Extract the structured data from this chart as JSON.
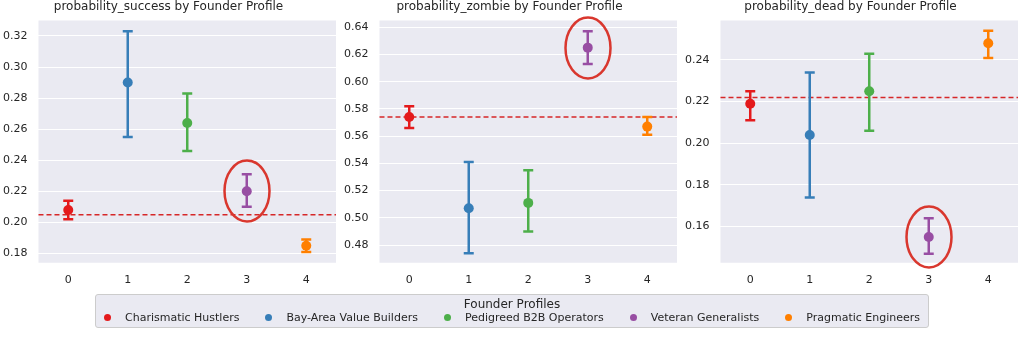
{
  "chart_data": [
    {
      "type": "scatter",
      "title": "probability_success by Founder Profile",
      "categories": [
        "0",
        "1",
        "2",
        "3",
        "4"
      ],
      "ylim": [
        0.174,
        0.33
      ],
      "yticks": [
        {
          "value": 0.18,
          "label": "0.18"
        },
        {
          "value": 0.2,
          "label": "0.20"
        },
        {
          "value": 0.22,
          "label": "0.22"
        },
        {
          "value": 0.24,
          "label": "0.24"
        },
        {
          "value": 0.26,
          "label": "0.26"
        },
        {
          "value": 0.28,
          "label": "0.28"
        },
        {
          "value": 0.3,
          "label": "0.30"
        },
        {
          "value": 0.32,
          "label": "0.32"
        }
      ],
      "grid": "y",
      "marker": "circle",
      "legend": "bottom",
      "legend_title": "Founder Profiles",
      "ref_lines": [
        {
          "axis": "y",
          "value": 0.205,
          "color": "#d62728",
          "line_style": "dashed"
        }
      ],
      "series": [
        {
          "name": "Charismatic Hustlers",
          "color": "#e41a1c",
          "values": [
            0.208,
            null,
            null,
            null,
            null
          ],
          "errors": [
            [
              0.202,
              0.214
            ],
            null,
            null,
            null,
            null
          ]
        },
        {
          "name": "Bay-Area Value Builders",
          "color": "#377eb8",
          "values": [
            null,
            0.29,
            null,
            null,
            null
          ],
          "errors": [
            null,
            [
              0.255,
              0.323
            ],
            null,
            null,
            null
          ]
        },
        {
          "name": "Pedigreed B2B Operators",
          "color": "#4daf4a",
          "values": [
            null,
            null,
            0.264,
            null,
            null
          ],
          "errors": [
            null,
            null,
            [
              0.246,
              0.283
            ],
            null,
            null
          ]
        },
        {
          "name": "Veteran Generalists",
          "color": "#984ea3",
          "values": [
            null,
            null,
            null,
            0.22,
            null
          ],
          "errors": [
            null,
            null,
            null,
            [
              0.21,
              0.231
            ],
            null
          ]
        },
        {
          "name": "Pragmatic Engineers",
          "color": "#ff7f00",
          "values": [
            null,
            null,
            null,
            null,
            0.185
          ],
          "errors": [
            null,
            null,
            null,
            null,
            [
              0.181,
              0.189
            ]
          ]
        }
      ]
    },
    {
      "type": "scatter",
      "title": "probability_zombie by Founder Profile",
      "categories": [
        "0",
        "1",
        "2",
        "3",
        "4"
      ],
      "ylim": [
        0.467,
        0.645
      ],
      "yticks": [
        {
          "value": 0.48,
          "label": "0.48"
        },
        {
          "value": 0.5,
          "label": "0.50"
        },
        {
          "value": 0.52,
          "label": "0.52"
        },
        {
          "value": 0.54,
          "label": "0.54"
        },
        {
          "value": 0.56,
          "label": "0.56"
        },
        {
          "value": 0.58,
          "label": "0.58"
        },
        {
          "value": 0.6,
          "label": "0.60"
        },
        {
          "value": 0.62,
          "label": "0.62"
        },
        {
          "value": 0.64,
          "label": "0.64"
        }
      ],
      "grid": "y",
      "marker": "circle",
      "ref_lines": [
        {
          "axis": "y",
          "value": 0.574,
          "color": "#d62728",
          "line_style": "dashed"
        }
      ],
      "series": [
        {
          "color": "#e41a1c",
          "values": [
            0.574,
            null,
            null,
            null,
            null
          ],
          "errors": [
            [
              0.566,
              0.582
            ],
            null,
            null,
            null,
            null
          ]
        },
        {
          "color": "#377eb8",
          "values": [
            null,
            0.507,
            null,
            null,
            null
          ],
          "errors": [
            null,
            [
              0.474,
              0.541
            ],
            null,
            null,
            null
          ]
        },
        {
          "color": "#4daf4a",
          "values": [
            null,
            null,
            0.511,
            null,
            null
          ],
          "errors": [
            null,
            null,
            [
              0.49,
              0.535
            ],
            null,
            null
          ]
        },
        {
          "color": "#984ea3",
          "values": [
            null,
            null,
            null,
            0.625,
            null
          ],
          "errors": [
            null,
            null,
            null,
            [
              0.613,
              0.637
            ],
            null
          ]
        },
        {
          "color": "#ff7f00",
          "values": [
            null,
            null,
            null,
            null,
            0.567
          ],
          "errors": [
            null,
            null,
            null,
            null,
            [
              0.561,
              0.574
            ]
          ]
        }
      ]
    },
    {
      "type": "scatter",
      "title": "probability_dead by Founder Profile",
      "categories": [
        "0",
        "1",
        "2",
        "3",
        "4"
      ],
      "ylim": [
        0.1426,
        0.259
      ],
      "yticks": [
        {
          "value": 0.16,
          "label": "0.16"
        },
        {
          "value": 0.18,
          "label": "0.18"
        },
        {
          "value": 0.2,
          "label": "0.20"
        },
        {
          "value": 0.22,
          "label": "0.22"
        },
        {
          "value": 0.24,
          "label": "0.24"
        }
      ],
      "grid": "y",
      "marker": "circle",
      "ref_lines": [
        {
          "axis": "y",
          "value": 0.222,
          "color": "#d62728",
          "line_style": "dashed"
        }
      ],
      "series": [
        {
          "color": "#e41a1c",
          "values": [
            0.219,
            null,
            null,
            null,
            null
          ],
          "errors": [
            [
              0.211,
              0.225
            ],
            null,
            null,
            null,
            null
          ]
        },
        {
          "color": "#377eb8",
          "values": [
            null,
            0.204,
            null,
            null,
            null
          ],
          "errors": [
            null,
            [
              0.174,
              0.234
            ],
            null,
            null,
            null
          ]
        },
        {
          "color": "#4daf4a",
          "values": [
            null,
            null,
            0.225,
            null,
            null
          ],
          "errors": [
            null,
            null,
            [
              0.206,
              0.243
            ],
            null,
            null
          ]
        },
        {
          "color": "#984ea3",
          "values": [
            null,
            null,
            null,
            0.155,
            null
          ],
          "errors": [
            null,
            null,
            null,
            [
              0.147,
              0.164
            ],
            null
          ]
        },
        {
          "color": "#ff7f00",
          "values": [
            null,
            null,
            null,
            null,
            0.248
          ],
          "errors": [
            null,
            null,
            null,
            null,
            [
              0.241,
              0.254
            ]
          ]
        }
      ]
    }
  ]
}
